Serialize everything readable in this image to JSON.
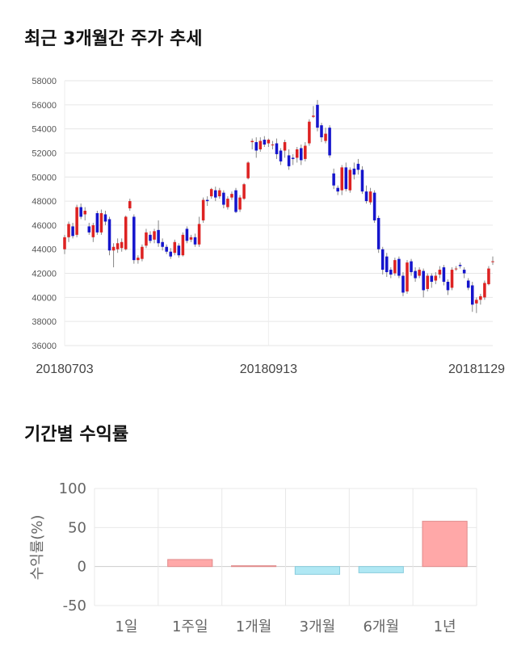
{
  "sections": {
    "price_title": "최근 3개월간 주가 추세",
    "returns_title": "기간별 수익률"
  },
  "colors": {
    "up": "#dd2222",
    "down": "#1515cc",
    "positive_bar": "#ffa8a8",
    "negative_bar": "#b0e8f4"
  },
  "chart_data": [
    {
      "type": "candlestick",
      "title": "최근 3개월간 주가 추세",
      "ylim": [
        36000,
        58000
      ],
      "yticks": [
        36000,
        38000,
        40000,
        42000,
        44000,
        46000,
        48000,
        50000,
        52000,
        54000,
        56000,
        58000
      ],
      "ytick_labels": [
        "36000",
        "38000",
        "40000",
        "42000",
        "44000",
        "46000",
        "48000",
        "50000",
        "52000",
        "54000",
        "56000",
        "58000"
      ],
      "x_labels": [
        {
          "index": 0,
          "label": "20180703"
        },
        {
          "index": 50,
          "label": "20180913"
        },
        {
          "index": 100,
          "label": "20181129"
        }
      ],
      "grid": true,
      "candles": [
        [
          44000,
          45000,
          43600,
          45200
        ],
        [
          45000,
          46100,
          44600,
          46300
        ],
        [
          45900,
          45100,
          44900,
          46200
        ],
        [
          45200,
          47500,
          45000,
          47700
        ],
        [
          47500,
          46700,
          46500,
          47800
        ],
        [
          46900,
          47200,
          46400,
          47500
        ],
        [
          45900,
          45400,
          45200,
          46200
        ],
        [
          45000,
          46000,
          44600,
          46200
        ],
        [
          47000,
          45400,
          45200,
          47200
        ],
        [
          45400,
          47000,
          45200,
          47300
        ],
        [
          46900,
          46300,
          46000,
          47200
        ],
        [
          46500,
          43900,
          43500,
          46700
        ],
        [
          43900,
          44200,
          42500,
          44500
        ],
        [
          44000,
          44500,
          43700,
          44900
        ],
        [
          44100,
          44600,
          43800,
          44900
        ],
        [
          44000,
          46700,
          43900,
          46800
        ],
        [
          47400,
          48000,
          47200,
          48200
        ],
        [
          46700,
          43100,
          42800,
          46900
        ],
        [
          43100,
          43300,
          42800,
          43500
        ],
        [
          43200,
          44200,
          43000,
          44400
        ],
        [
          44300,
          45400,
          44100,
          45700
        ],
        [
          45200,
          44700,
          44500,
          45500
        ],
        [
          44800,
          45500,
          44500,
          45700
        ],
        [
          45600,
          44500,
          44200,
          46400
        ],
        [
          44600,
          44200,
          43900,
          44900
        ],
        [
          44200,
          43800,
          43600,
          44400
        ],
        [
          43800,
          43400,
          43200,
          44100
        ],
        [
          43700,
          44600,
          43500,
          44800
        ],
        [
          44300,
          43500,
          43300,
          44500
        ],
        [
          43500,
          45200,
          43400,
          45400
        ],
        [
          45700,
          44700,
          44500,
          45900
        ],
        [
          44800,
          45000,
          44600,
          45200
        ],
        [
          45000,
          44400,
          44200,
          45300
        ],
        [
          44400,
          46100,
          44200,
          46700
        ],
        [
          46400,
          48100,
          46200,
          48300
        ],
        [
          48100,
          48000,
          47600,
          48400
        ],
        [
          48400,
          49000,
          48200,
          49100
        ],
        [
          48900,
          48300,
          48000,
          49200
        ],
        [
          48400,
          48900,
          48200,
          49100
        ],
        [
          48700,
          47700,
          47400,
          48900
        ],
        [
          47500,
          48200,
          47300,
          48400
        ],
        [
          48300,
          48600,
          48100,
          48800
        ],
        [
          48900,
          47100,
          47000,
          49100
        ],
        [
          47300,
          48300,
          47100,
          48500
        ],
        [
          48200,
          49400,
          48100,
          49500
        ],
        [
          49900,
          51200,
          49800,
          51300
        ],
        [
          52900,
          53000,
          52300,
          53200
        ],
        [
          52900,
          52200,
          51600,
          53300
        ],
        [
          52300,
          53000,
          52100,
          53300
        ],
        [
          53100,
          52700,
          52500,
          53400
        ],
        [
          52800,
          53100,
          52500,
          53200
        ],
        [
          52700,
          52700,
          52300,
          53000
        ],
        [
          52800,
          51900,
          51500,
          53200
        ],
        [
          52200,
          51300,
          51000,
          52400
        ],
        [
          52200,
          52900,
          51600,
          53100
        ],
        [
          51800,
          50900,
          50600,
          52300
        ],
        [
          51600,
          51500,
          51000,
          51900
        ],
        [
          51600,
          52300,
          51200,
          52500
        ],
        [
          52400,
          51400,
          51000,
          52700
        ],
        [
          51500,
          52600,
          51300,
          52900
        ],
        [
          52800,
          54600,
          52600,
          54800
        ],
        [
          55000,
          55100,
          54900,
          55900
        ],
        [
          56000,
          54100,
          53800,
          56400
        ],
        [
          54300,
          53300,
          52900,
          54500
        ],
        [
          53000,
          53600,
          52800,
          54100
        ],
        [
          54100,
          51800,
          51600,
          54300
        ],
        [
          50300,
          49300,
          49000,
          50700
        ],
        [
          49100,
          48800,
          48500,
          49300
        ],
        [
          48900,
          50800,
          48500,
          51000
        ],
        [
          50800,
          49000,
          48800,
          51200
        ],
        [
          48900,
          50600,
          48700,
          50800
        ],
        [
          50700,
          50200,
          49800,
          51200
        ],
        [
          51100,
          50600,
          50200,
          51500
        ],
        [
          50600,
          48800,
          48600,
          50900
        ],
        [
          48800,
          48000,
          47800,
          49300
        ],
        [
          47900,
          48800,
          47700,
          49100
        ],
        [
          48700,
          46400,
          46200,
          48900
        ],
        [
          46600,
          44000,
          43700,
          46800
        ],
        [
          44000,
          42300,
          41900,
          44200
        ],
        [
          43400,
          42100,
          41700,
          43700
        ],
        [
          42300,
          41900,
          41600,
          42500
        ],
        [
          42000,
          43100,
          41800,
          43300
        ],
        [
          43200,
          41800,
          41600,
          43400
        ],
        [
          41800,
          40400,
          40100,
          42100
        ],
        [
          40500,
          42900,
          40300,
          43100
        ],
        [
          43000,
          42100,
          41800,
          43200
        ],
        [
          42200,
          41600,
          41300,
          42500
        ],
        [
          41800,
          42300,
          41600,
          42500
        ],
        [
          42200,
          40600,
          40000,
          42400
        ],
        [
          40700,
          41800,
          40500,
          42000
        ],
        [
          41800,
          41300,
          40800,
          42000
        ],
        [
          41400,
          41800,
          41100,
          42100
        ],
        [
          41900,
          42300,
          41600,
          42600
        ],
        [
          42500,
          41300,
          41000,
          42700
        ],
        [
          41300,
          40600,
          40200,
          41500
        ],
        [
          40800,
          42300,
          40600,
          42500
        ],
        [
          42400,
          42400,
          42200,
          42600
        ],
        [
          42700,
          42600,
          42400,
          42900
        ],
        [
          42300,
          42000,
          41600,
          42500
        ],
        [
          41400,
          40800,
          40600,
          41600
        ],
        [
          41000,
          39400,
          38800,
          41300
        ],
        [
          39500,
          39800,
          38700,
          40000
        ],
        [
          39800,
          40100,
          39400,
          40300
        ],
        [
          40000,
          41200,
          39800,
          41400
        ],
        [
          41100,
          42400,
          41000,
          42600
        ],
        [
          43000,
          43000,
          42700,
          43400
        ]
      ]
    },
    {
      "type": "bar",
      "categories": [
        "1일",
        "1주일",
        "1개월",
        "3개월",
        "6개월",
        "1년"
      ],
      "values": [
        0,
        9,
        1,
        -10,
        -8,
        58
      ],
      "ylabel": "수익률(%)",
      "ylim": [
        -50,
        100
      ],
      "yticks": [
        -50,
        0,
        50,
        100
      ],
      "ytick_labels": [
        "-50",
        "0",
        "50",
        "100"
      ],
      "grid": true
    }
  ]
}
